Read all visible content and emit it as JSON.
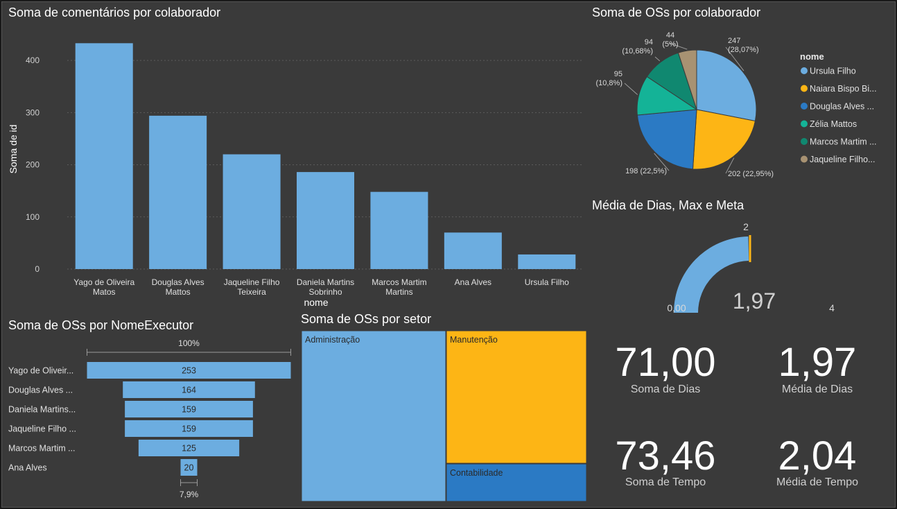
{
  "titles": {
    "bar": "Soma de comentários por colaborador",
    "pie": "Soma de OSs por colaborador",
    "gauge": "Média de Dias, Max e Meta",
    "funnel": "Soma de OSs por NomeExecutor",
    "treemap": "Soma de OSs por setor"
  },
  "colors": {
    "bar": "#6cade0",
    "yellow": "#fdb515",
    "blue_dark": "#2b7ac4",
    "teal": "#14b397",
    "teal_dark": "#108870",
    "tan": "#a89272",
    "background": "#3a3a3a"
  },
  "chart_data": [
    {
      "id": "bar",
      "type": "bar",
      "title": "Soma de comentários por colaborador",
      "ylabel": "Soma de id",
      "xlabel": "nome",
      "categories": [
        [
          "Yago de Oliveira",
          "Matos"
        ],
        [
          "Douglas Alves",
          "Mattos"
        ],
        [
          "Jaqueline Filho",
          "Teixeira"
        ],
        [
          "Daniela Martins",
          "Sobrinho"
        ],
        [
          "Marcos Martim",
          "Martins"
        ],
        [
          "Ana Alves"
        ],
        [
          "Ursula Filho"
        ]
      ],
      "values": [
        433,
        294,
        220,
        186,
        148,
        70,
        28
      ],
      "ylim": [
        0,
        460
      ],
      "yticks": [
        0,
        100,
        200,
        300,
        400
      ],
      "grid": true
    },
    {
      "id": "pie",
      "type": "pie",
      "title": "Soma de OSs por colaborador",
      "legend_title": "nome",
      "legend_position": "right",
      "slices": [
        {
          "name": "Ursula Filho",
          "value": 247,
          "label": "247",
          "pct": "(28,07%)",
          "color": "#6cade0"
        },
        {
          "name": "Naiara Bispo Bi...",
          "value": 202,
          "label": "202 (22,95%)",
          "pct": "",
          "color": "#fdb515"
        },
        {
          "name": "Douglas Alves ...",
          "value": 198,
          "label": "198 (22,5%)",
          "pct": "",
          "color": "#2b7ac4"
        },
        {
          "name": "Zélia Mattos",
          "value": 95,
          "label": "95",
          "pct": "(10,8%)",
          "color": "#14b397"
        },
        {
          "name": "Marcos Martim ...",
          "value": 94,
          "label": "94",
          "pct": "(10,68%)",
          "color": "#108870"
        },
        {
          "name": "Jaqueline Filho...",
          "value": 44,
          "label": "44",
          "pct": "(5%)",
          "color": "#a89272"
        }
      ]
    },
    {
      "id": "gauge",
      "type": "gauge",
      "title": "Média de Dias, Max e Meta",
      "value": 1.97,
      "value_label": "1,97",
      "min": 0,
      "min_label": "0,00",
      "max": 4,
      "max_label": "4",
      "target": 2,
      "target_label": "2"
    },
    {
      "id": "funnel",
      "type": "funnel",
      "title": "Soma de OSs por NomeExecutor",
      "top_pct": "100%",
      "bottom_pct": "7,9%",
      "categories": [
        "Yago de Oliveir...",
        "Douglas Alves ...",
        "Daniela Martins...",
        "Jaqueline Filho ...",
        "Marcos Martim ...",
        "Ana Alves"
      ],
      "values": [
        253,
        164,
        159,
        159,
        125,
        20
      ]
    },
    {
      "id": "treemap",
      "type": "treemap",
      "title": "Soma de OSs por setor",
      "items": [
        {
          "name": "Administração",
          "color": "#6cade0"
        },
        {
          "name": "Manutenção",
          "color": "#fdb515"
        },
        {
          "name": "Contabilidade",
          "color": "#2b7ac4"
        }
      ]
    }
  ],
  "kpis": [
    {
      "value": "71,00",
      "label": "Soma de Dias"
    },
    {
      "value": "1,97",
      "label": "Média de Dias"
    },
    {
      "value": "73,46",
      "label": "Soma de Tempo"
    },
    {
      "value": "2,04",
      "label": "Média de Tempo"
    }
  ]
}
